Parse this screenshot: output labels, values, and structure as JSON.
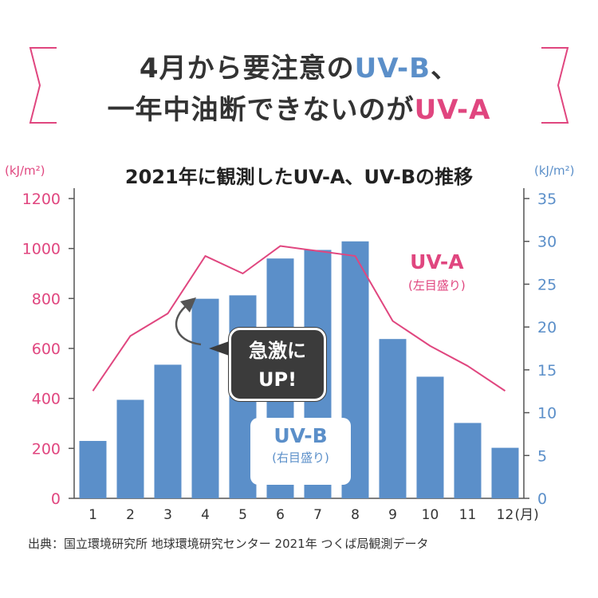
{
  "headline": {
    "line1_prefix": "4月から要注意の",
    "line1_highlight": "UV-B",
    "line1_suffix": "、",
    "line2_prefix": "一年中油断できないのが",
    "line2_highlight": "UV-A"
  },
  "chart_data": {
    "type": "bar+line",
    "title": "2021年に観測したUV-A、UV-Bの推移",
    "categories": [
      "1",
      "2",
      "3",
      "4",
      "5",
      "6",
      "7",
      "8",
      "9",
      "10",
      "11",
      "12"
    ],
    "x_unit_label": "(月)",
    "left_axis": {
      "unit": "(kJ/m²)",
      "ticks": [
        "0",
        "200",
        "400",
        "600",
        "800",
        "1000",
        "1200"
      ],
      "range": [
        0,
        1200
      ]
    },
    "right_axis": {
      "unit": "(kJ/m²)",
      "ticks": [
        "0",
        "5",
        "10",
        "15",
        "20",
        "25",
        "30",
        "35"
      ],
      "range": [
        0,
        35
      ]
    },
    "series": [
      {
        "name": "UV-B",
        "axis_note": "(右目盛り)",
        "type": "bar",
        "axis": "right",
        "values": [
          6.7,
          11.5,
          15.6,
          23.3,
          23.7,
          28.0,
          29.0,
          30.0,
          18.6,
          14.2,
          8.8,
          5.9
        ]
      },
      {
        "name": "UV-A",
        "axis_note": "(左目盛り)",
        "type": "line",
        "axis": "left",
        "values": [
          430,
          650,
          740,
          970,
          900,
          1010,
          990,
          970,
          710,
          610,
          530,
          430
        ]
      }
    ],
    "annotation": {
      "line1": "急激に",
      "line2": "UP!"
    }
  },
  "source": "出典：国立環境研究所 地球環境研究センター 2021年 つくば局観測データ",
  "colors": {
    "uva": "#e0467f",
    "uvb": "#5b8fc9",
    "text": "#333333",
    "callout": "#3b3b3b"
  }
}
